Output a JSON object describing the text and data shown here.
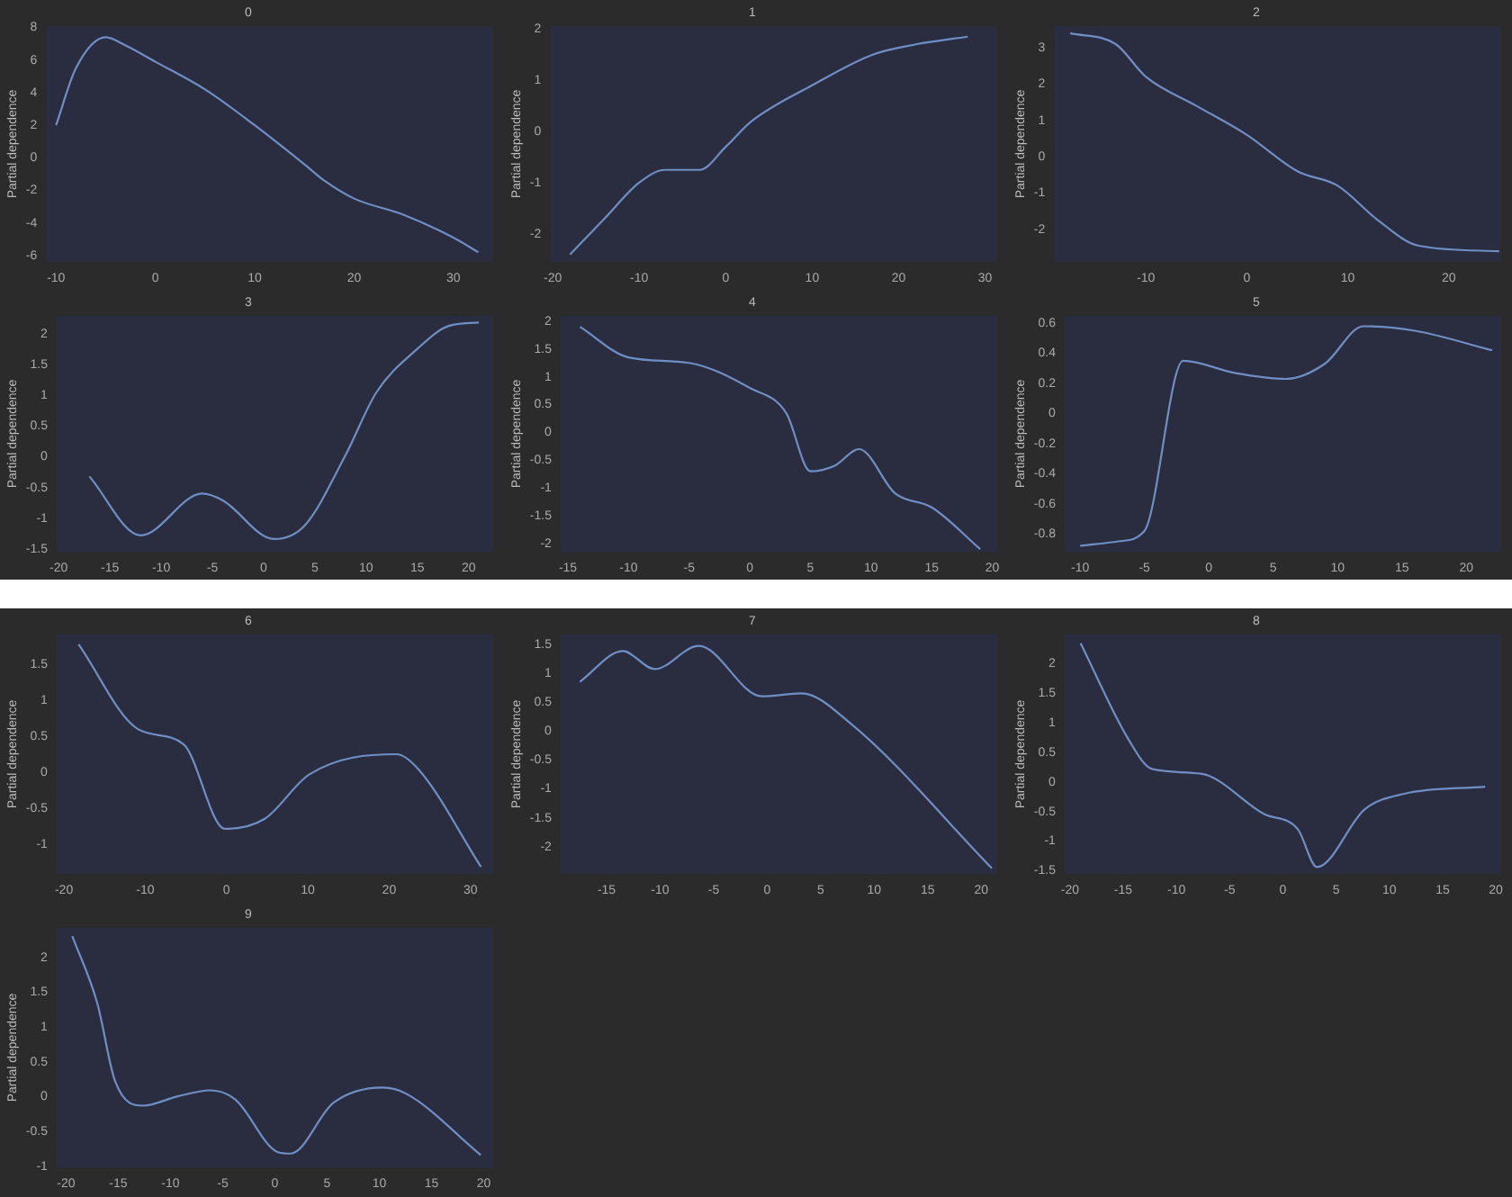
{
  "chart_data": [
    {
      "type": "line",
      "title": "0",
      "ylabel": "Partial dependence",
      "xlim": [
        -11,
        34
      ],
      "ylim": [
        -6.4,
        8.1
      ],
      "xticks": [
        -10,
        0,
        10,
        20,
        30
      ],
      "yticks": [
        8,
        6,
        4,
        2,
        0,
        -2,
        -4,
        -6
      ],
      "grid": false,
      "legend": false,
      "marker": "none",
      "x": [
        -10,
        -8,
        -5,
        -3,
        0,
        5,
        10,
        15,
        17,
        20,
        25,
        30,
        32.5
      ],
      "series": [
        {
          "color": "#6f8fc4",
          "values": [
            2,
            5.5,
            7.4,
            6.9,
            5.9,
            4.2,
            2,
            -0.4,
            -1.4,
            -2.5,
            -3.5,
            -4.9,
            -5.8
          ]
        }
      ]
    },
    {
      "type": "line",
      "title": "1",
      "ylabel": "Partial dependence",
      "xlim": [
        -20.3,
        31.4
      ],
      "ylim": [
        -2.55,
        2.06
      ],
      "xticks": [
        -20,
        -10,
        0,
        10,
        20,
        30
      ],
      "yticks": [
        2,
        1,
        0,
        -1,
        -2
      ],
      "grid": false,
      "legend": false,
      "marker": "none",
      "x": [
        -18,
        -14,
        -10,
        -7,
        -3,
        0,
        3,
        10,
        17,
        22,
        28
      ],
      "series": [
        {
          "color": "#6f8fc4",
          "values": [
            -2.4,
            -1.7,
            -1.0,
            -0.75,
            -0.75,
            -0.3,
            0.2,
            0.9,
            1.5,
            1.7,
            1.85
          ]
        }
      ]
    },
    {
      "type": "line",
      "title": "2",
      "ylabel": "Partial dependence",
      "xlim": [
        -19.1,
        25.2
      ],
      "ylim": [
        -2.9,
        3.6
      ],
      "xticks": [
        -10,
        0,
        10,
        20
      ],
      "yticks": [
        3,
        2,
        1,
        0,
        -1,
        -2
      ],
      "grid": false,
      "legend": false,
      "marker": "none",
      "x": [
        -17.5,
        -13,
        -10,
        -5,
        0,
        5,
        9,
        13,
        17,
        25
      ],
      "series": [
        {
          "color": "#6f8fc4",
          "values": [
            3.4,
            3.1,
            2.2,
            1.4,
            0.6,
            -0.4,
            -0.8,
            -1.75,
            -2.45,
            -2.6
          ]
        }
      ]
    },
    {
      "type": "line",
      "title": "3",
      "ylabel": "Partial dependence",
      "xlim": [
        -20.2,
        22.4
      ],
      "ylim": [
        -1.55,
        2.3
      ],
      "xticks": [
        -20,
        -15,
        -10,
        -5,
        0,
        5,
        10,
        15,
        20
      ],
      "yticks": [
        2,
        1.5,
        1,
        0.5,
        0,
        -0.5,
        -1,
        -1.5
      ],
      "grid": false,
      "legend": false,
      "marker": "none",
      "x": [
        -17,
        -12,
        -6,
        -4,
        1,
        4,
        8,
        11,
        15,
        18,
        21
      ],
      "series": [
        {
          "color": "#6f8fc4",
          "values": [
            -0.32,
            -1.28,
            -0.6,
            -0.71,
            -1.34,
            -1.12,
            0.03,
            1.05,
            1.76,
            2.13,
            2.19
          ]
        }
      ]
    },
    {
      "type": "line",
      "title": "4",
      "ylabel": "Partial dependence",
      "xlim": [
        -15.6,
        20.4
      ],
      "ylim": [
        -2.15,
        2.1
      ],
      "xticks": [
        -15,
        -10,
        -5,
        0,
        5,
        10,
        15,
        20
      ],
      "yticks": [
        2,
        1.5,
        1,
        0.5,
        0,
        -0.5,
        -1,
        -1.5,
        -2
      ],
      "grid": false,
      "legend": false,
      "marker": "none",
      "x": [
        -14,
        -10,
        -5,
        0,
        3,
        5,
        7,
        9,
        12,
        15,
        19
      ],
      "series": [
        {
          "color": "#6f8fc4",
          "values": [
            1.9,
            1.35,
            1.25,
            0.8,
            0.35,
            -0.7,
            -0.6,
            -0.3,
            -1.1,
            -1.35,
            -2.1
          ]
        }
      ]
    },
    {
      "type": "line",
      "title": "5",
      "ylabel": "Partial dependence",
      "xlim": [
        -11.2,
        22.7
      ],
      "ylim": [
        -0.92,
        0.65
      ],
      "xticks": [
        -10,
        -5,
        0,
        5,
        10,
        15,
        20
      ],
      "yticks": [
        0.6,
        0.4,
        0.2,
        0,
        -0.2,
        -0.4,
        -0.6,
        -0.8
      ],
      "grid": false,
      "legend": false,
      "marker": "none",
      "x": [
        -10,
        -7,
        -5,
        -2,
        2,
        6,
        9,
        12,
        16,
        22
      ],
      "series": [
        {
          "color": "#6f8fc4",
          "values": [
            -0.88,
            -0.85,
            -0.78,
            0.35,
            0.27,
            0.23,
            0.33,
            0.58,
            0.55,
            0.42
          ]
        }
      ]
    },
    {
      "type": "line",
      "title": "6",
      "ylabel": "Partial dependence",
      "xlim": [
        -20.9,
        32.8
      ],
      "ylim": [
        -1.42,
        1.92
      ],
      "xticks": [
        -20,
        -10,
        0,
        10,
        20,
        30
      ],
      "yticks": [
        1.5,
        1,
        0.5,
        0,
        -0.5,
        -1
      ],
      "grid": false,
      "legend": false,
      "marker": "none",
      "x": [
        -18.2,
        -10.9,
        -5.3,
        -0.2,
        4.7,
        10.2,
        20.9,
        23.6,
        31.3
      ],
      "series": [
        {
          "color": "#6f8fc4",
          "values": [
            1.78,
            0.6,
            0.39,
            -0.79,
            -0.65,
            -0.03,
            0.25,
            0.04,
            -1.32
          ]
        }
      ]
    },
    {
      "type": "line",
      "title": "7",
      "ylabel": "Partial dependence",
      "xlim": [
        -19.3,
        21.5
      ],
      "ylim": [
        -2.47,
        1.67
      ],
      "xticks": [
        -15,
        -10,
        -5,
        0,
        5,
        10,
        15,
        20
      ],
      "yticks": [
        1.5,
        1,
        0.5,
        0,
        -0.5,
        -1,
        -1.5,
        -2
      ],
      "grid": false,
      "legend": false,
      "marker": "none",
      "x": [
        -17.5,
        -13.5,
        -10.5,
        -6.4,
        -0.5,
        3.2,
        7.8,
        21
      ],
      "series": [
        {
          "color": "#6f8fc4",
          "values": [
            0.85,
            1.38,
            1.07,
            1.47,
            0.6,
            0.65,
            0.13,
            -2.37
          ]
        }
      ]
    },
    {
      "type": "line",
      "title": "8",
      "ylabel": "Partial dependence",
      "xlim": [
        -20.5,
        20.5
      ],
      "ylim": [
        -1.56,
        2.5
      ],
      "xticks": [
        -20,
        -15,
        -10,
        -5,
        0,
        5,
        10,
        15,
        20
      ],
      "yticks": [
        2,
        1.5,
        1,
        0.5,
        0,
        -0.5,
        -1,
        -1.5
      ],
      "grid": false,
      "legend": false,
      "marker": "none",
      "x": [
        -19,
        -14.5,
        -12.3,
        -7.7,
        -1.8,
        1.4,
        3.2,
        7.7,
        11.4,
        19
      ],
      "series": [
        {
          "color": "#6f8fc4",
          "values": [
            2.35,
            0.72,
            0.22,
            0.14,
            -0.54,
            -0.8,
            -1.44,
            -0.46,
            -0.2,
            -0.08
          ]
        }
      ]
    },
    {
      "type": "line",
      "title": "9",
      "ylabel": "Partial dependence",
      "xlim": [
        -20.9,
        20.9
      ],
      "ylim": [
        -1.02,
        2.43
      ],
      "xticks": [
        -20,
        -15,
        -10,
        -5,
        0,
        5,
        10,
        15,
        20
      ],
      "yticks": [
        2,
        1.5,
        1,
        0.5,
        0,
        -0.5,
        -1
      ],
      "grid": false,
      "legend": false,
      "marker": "none",
      "x": [
        -19.4,
        -17,
        -15.3,
        -12.6,
        -9.4,
        -6.2,
        -3.8,
        0.3,
        1.5,
        5.6,
        10.3,
        12.6,
        19.7
      ],
      "series": [
        {
          "color": "#6f8fc4",
          "values": [
            2.31,
            1.34,
            0.22,
            -0.13,
            0,
            0.09,
            -0.04,
            -0.8,
            -0.82,
            -0.09,
            0.13,
            0.04,
            -0.84
          ]
        }
      ]
    }
  ]
}
